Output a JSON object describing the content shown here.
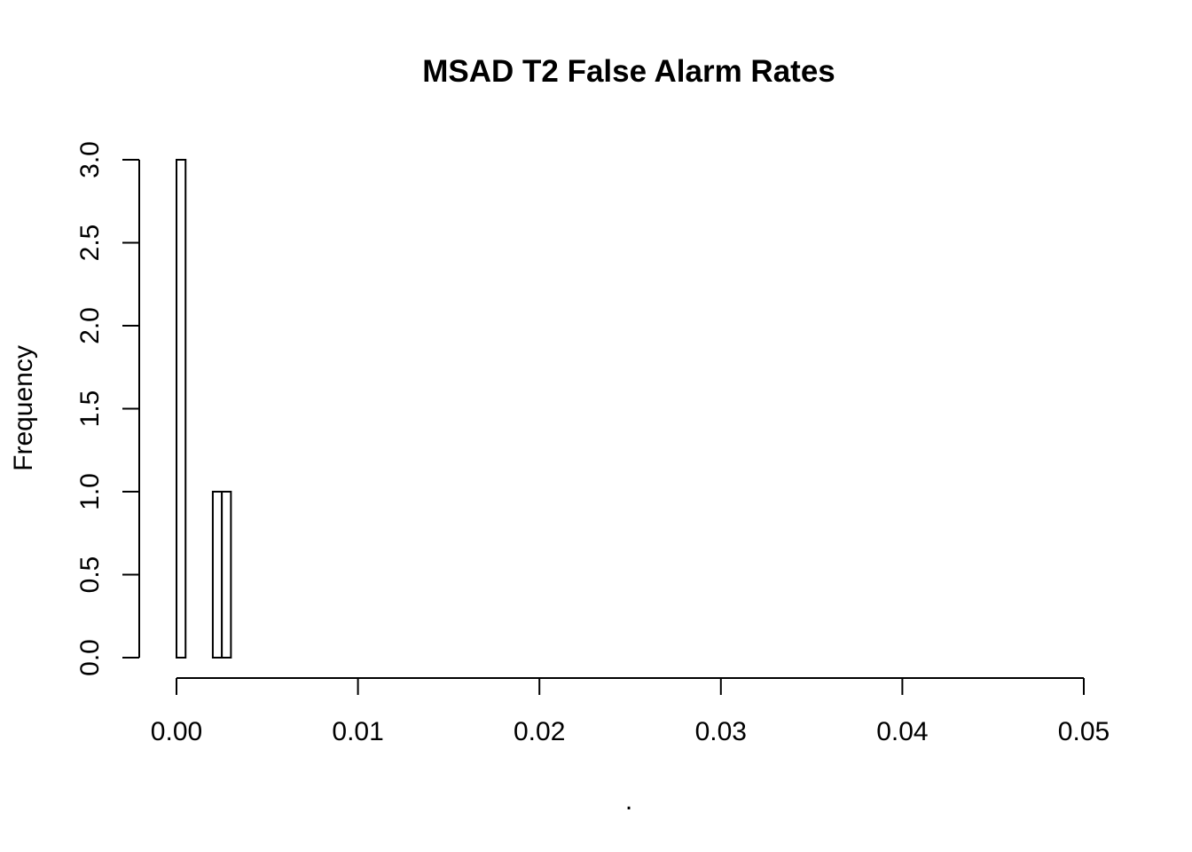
{
  "chart_data": {
    "type": "bar",
    "title": "MSAD T2 False Alarm Rates",
    "xlabel": ".",
    "ylabel": "Frequency",
    "xlim": [
      0,
      0.05
    ],
    "ylim": [
      0,
      3
    ],
    "bin_width": 0.0005,
    "bins": [
      {
        "start": 0.0,
        "end": 0.0005,
        "count": 3
      },
      {
        "start": 0.0005,
        "end": 0.001,
        "count": 0
      },
      {
        "start": 0.001,
        "end": 0.0015,
        "count": 0
      },
      {
        "start": 0.0015,
        "end": 0.002,
        "count": 0
      },
      {
        "start": 0.002,
        "end": 0.0025,
        "count": 1
      },
      {
        "start": 0.0025,
        "end": 0.003,
        "count": 1
      }
    ],
    "x_ticks": [
      0,
      0.01,
      0.02,
      0.03,
      0.04,
      0.05
    ],
    "x_tick_labels": [
      "0.00",
      "0.01",
      "0.02",
      "0.03",
      "0.04",
      "0.05"
    ],
    "y_ticks": [
      0,
      0.5,
      1,
      1.5,
      2,
      2.5,
      3
    ],
    "y_tick_labels": [
      "0.0",
      "0.5",
      "1.0",
      "1.5",
      "2.0",
      "2.5",
      "3.0"
    ],
    "grid": false,
    "legend": "none"
  }
}
